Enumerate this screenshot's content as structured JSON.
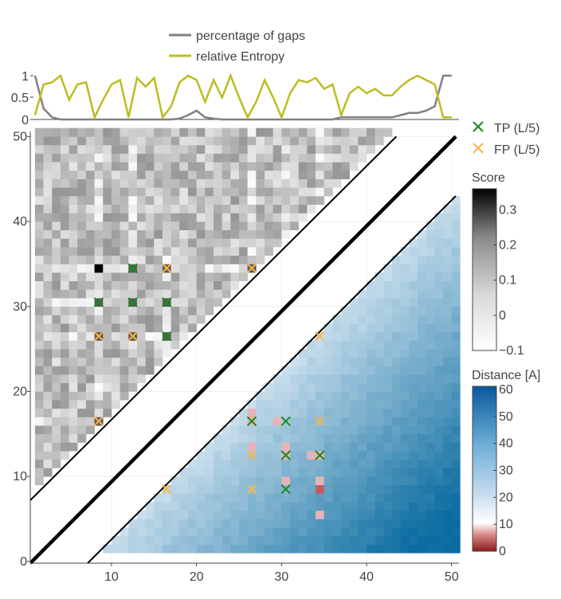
{
  "chart_data": [
    {
      "type": "line",
      "legend_position": "top",
      "ylim": [
        0,
        1
      ],
      "yticks": [
        "0",
        "0.5",
        "1"
      ],
      "xlim": [
        1,
        50
      ],
      "series": [
        {
          "name": "percentage of gaps",
          "color": "#808080",
          "x": [
            1,
            2,
            3,
            4,
            5,
            6,
            7,
            8,
            9,
            10,
            11,
            12,
            13,
            14,
            15,
            16,
            17,
            18,
            19,
            20,
            21,
            22,
            23,
            24,
            25,
            26,
            27,
            28,
            29,
            30,
            31,
            32,
            33,
            34,
            35,
            36,
            37,
            38,
            39,
            40,
            41,
            42,
            43,
            44,
            45,
            46,
            47,
            48,
            49,
            50
          ],
          "values": [
            1,
            0.25,
            0.05,
            0,
            0,
            0,
            0,
            0,
            0,
            0,
            0,
            0,
            0,
            0,
            0,
            0,
            0,
            0.02,
            0.1,
            0.2,
            0.05,
            0.02,
            0,
            0,
            0,
            0,
            0,
            0,
            0,
            0,
            0,
            0,
            0,
            0,
            0,
            0,
            0.05,
            0.05,
            0.05,
            0.05,
            0.05,
            0.05,
            0.05,
            0.1,
            0.15,
            0.15,
            0.2,
            0.3,
            1,
            1
          ]
        },
        {
          "name": "relative Entropy",
          "color": "#bcbd22",
          "x": [
            1,
            2,
            3,
            4,
            5,
            6,
            7,
            8,
            9,
            10,
            11,
            12,
            13,
            14,
            15,
            16,
            17,
            18,
            19,
            20,
            21,
            22,
            23,
            24,
            25,
            26,
            27,
            28,
            29,
            30,
            31,
            32,
            33,
            34,
            35,
            36,
            37,
            38,
            39,
            40,
            41,
            42,
            43,
            44,
            45,
            46,
            47,
            48,
            49,
            50
          ],
          "values": [
            0.1,
            0.8,
            0.85,
            1,
            0.45,
            0.8,
            0.85,
            0.05,
            0.45,
            0.8,
            0.9,
            0.05,
            0.95,
            0.75,
            0.95,
            0.05,
            0.3,
            0.85,
            1,
            0.9,
            0.4,
            0.9,
            0.5,
            1,
            0.5,
            0.05,
            0.4,
            0.9,
            0.5,
            0.05,
            0.6,
            0.9,
            0.85,
            0.95,
            0.7,
            0.8,
            0.1,
            0.6,
            0.75,
            0.6,
            0.7,
            0.55,
            0.55,
            0.75,
            0.9,
            1,
            0.9,
            0.8,
            0.05,
            0.05
          ]
        }
      ]
    },
    {
      "type": "heatmap",
      "xlim": [
        1,
        50
      ],
      "ylim": [
        0,
        50
      ],
      "xticks": [
        "10",
        "20",
        "30",
        "40",
        "50"
      ],
      "yticks": [
        "0",
        "10",
        "20",
        "30",
        "40",
        "50"
      ],
      "upper_triangle": "Score",
      "lower_triangle": "Distance [A]",
      "strong_contacts": [
        [
          8,
          34
        ],
        [
          12,
          34
        ],
        [
          16,
          34
        ],
        [
          8,
          30
        ],
        [
          12,
          30
        ],
        [
          16,
          30
        ],
        [
          8,
          26
        ],
        [
          12,
          26
        ],
        [
          16,
          26
        ],
        [
          8,
          16
        ],
        [
          26,
          34
        ]
      ],
      "tp_points": [
        [
          12,
          34
        ],
        [
          8,
          30
        ],
        [
          12,
          30
        ],
        [
          16,
          30
        ],
        [
          16,
          26
        ],
        [
          26,
          16
        ],
        [
          30,
          16
        ],
        [
          30,
          12
        ],
        [
          34,
          12
        ],
        [
          30,
          8
        ]
      ],
      "fp_points": [
        [
          16,
          34
        ],
        [
          26,
          34
        ],
        [
          8,
          26
        ],
        [
          12,
          26
        ],
        [
          8,
          16
        ],
        [
          34,
          26
        ],
        [
          34,
          16
        ],
        [
          26,
          12
        ],
        [
          16,
          8
        ],
        [
          26,
          8
        ]
      ],
      "close_pairs": [
        [
          26,
          17
        ],
        [
          26,
          16
        ],
        [
          29,
          16
        ],
        [
          30,
          13
        ],
        [
          30,
          12
        ],
        [
          26,
          13
        ],
        [
          33,
          12
        ],
        [
          34,
          12
        ],
        [
          30,
          9
        ],
        [
          34,
          9
        ],
        [
          34,
          8
        ],
        [
          34,
          5
        ]
      ]
    }
  ],
  "legend": {
    "tp_label": "TP (L/5)",
    "tp_color": "#1a8a1a",
    "fp_label": "FP (L/5)",
    "fp_color": "#ffb347"
  },
  "colorbar_score": {
    "title": "Score",
    "ticks": [
      "0.3",
      "0.2",
      "0.1",
      "0",
      "−0.1"
    ],
    "tick_values": [
      0.3,
      0.2,
      0.1,
      0,
      -0.1
    ],
    "min": -0.1,
    "max": 0.36
  },
  "colorbar_distance": {
    "title": "Distance [A]",
    "ticks": [
      "60",
      "50",
      "40",
      "30",
      "20",
      "10",
      "0"
    ],
    "tick_values": [
      60,
      50,
      40,
      30,
      20,
      10,
      0
    ],
    "min": 0,
    "max": 60
  }
}
